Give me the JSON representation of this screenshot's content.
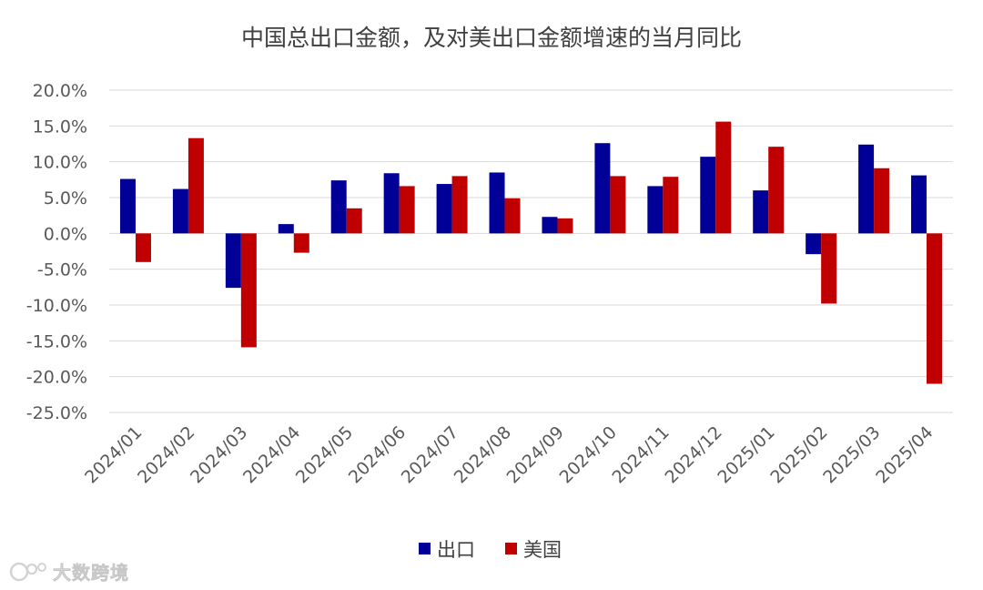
{
  "chart_data": {
    "type": "bar",
    "title": "中国总出口金额，及对美出口金额增速的当月同比",
    "categories": [
      "2024/01",
      "2024/02",
      "2024/03",
      "2024/04",
      "2024/05",
      "2024/06",
      "2024/07",
      "2024/08",
      "2024/09",
      "2024/10",
      "2024/11",
      "2024/12",
      "2025/01",
      "2025/02",
      "2025/03",
      "2025/04"
    ],
    "series": [
      {
        "name": "出口",
        "color": "#000099",
        "values": [
          7.6,
          6.2,
          -7.6,
          1.3,
          7.4,
          8.4,
          6.9,
          8.5,
          2.3,
          12.6,
          6.6,
          10.7,
          6.0,
          -2.9,
          12.4,
          8.1
        ]
      },
      {
        "name": "美国",
        "color": "#c00000",
        "values": [
          -4.0,
          13.3,
          -15.9,
          -2.7,
          3.5,
          6.6,
          8.0,
          4.9,
          2.1,
          8.0,
          7.9,
          15.6,
          12.1,
          -9.8,
          9.1,
          -21.0
        ]
      }
    ],
    "ylim": [
      -25,
      20
    ],
    "yticks": [
      20,
      15,
      10,
      5,
      0,
      -5,
      -10,
      -15,
      -20,
      -25
    ],
    "ytick_labels": [
      "20.0%",
      "15.0%",
      "10.0%",
      "5.0%",
      "0.0%",
      "-5.0%",
      "-10.0%",
      "-15.0%",
      "-20.0%",
      "-25.0%"
    ],
    "xlabel": "",
    "ylabel": "",
    "grid": true,
    "legend_position": "bottom"
  },
  "watermark": {
    "text": "大数跨境",
    "icon": "brand-logo-icon"
  }
}
